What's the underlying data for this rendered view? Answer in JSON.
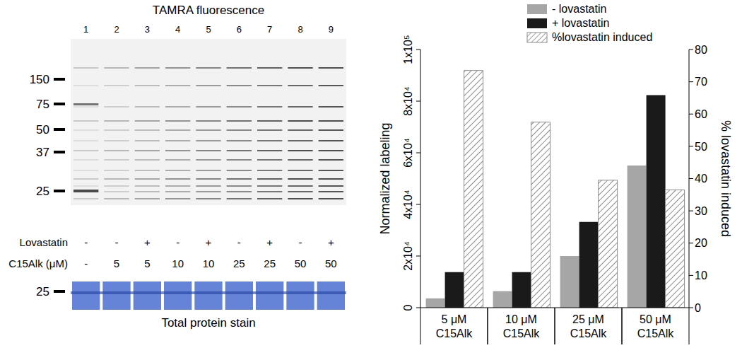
{
  "gel": {
    "title": "TAMRA fluorescence",
    "lanes": [
      "1",
      "2",
      "3",
      "4",
      "5",
      "6",
      "7",
      "8",
      "9"
    ],
    "markers": [
      150,
      75,
      50,
      37,
      25
    ],
    "rows": [
      {
        "label": "Lovastatin",
        "values": [
          "-",
          "-",
          "+",
          "-",
          "+",
          "-",
          "+",
          "-",
          "+"
        ]
      },
      {
        "label": "C15Alk (μM)",
        "values": [
          "-",
          "5",
          "5",
          "10",
          "10",
          "25",
          "25",
          "50",
          "50"
        ]
      }
    ],
    "stain": {
      "label": "Total protein stain",
      "markers": [
        25
      ]
    }
  },
  "chart_data": {
    "type": "bar",
    "categories": [
      "5 μM C15Alk",
      "10 μM C15Alk",
      "25 μM C15Alk",
      "50 μM C15Alk"
    ],
    "series": [
      {
        "name": "- lovastatin",
        "color": "#a6a6a6",
        "values": [
          3600,
          6400,
          20000,
          55100
        ]
      },
      {
        "name": "+ lovastatin",
        "color": "#1a1a1a",
        "values": [
          13800,
          13800,
          33200,
          82300
        ]
      },
      {
        "name": "%lovastatin induced",
        "color": "#8c8c8c",
        "values": [
          73.5,
          57.5,
          39.5,
          36.5
        ],
        "axis": "y2"
      }
    ],
    "y_label": "Normalized labeling",
    "y2_label": "% lovastatin induced",
    "ylim": [
      0,
      100000
    ],
    "yticks": [
      0,
      {
        "value": 20000,
        "label": "2x10⁴"
      },
      {
        "value": 40000,
        "label": "4x10⁴"
      },
      {
        "value": 60000,
        "label": "6x10⁴"
      },
      {
        "value": 80000,
        "label": "8x10⁴"
      },
      {
        "value": 100000,
        "label": "1x10⁵"
      }
    ],
    "y2lim": [
      0,
      80
    ],
    "y2ticks": [
      0,
      10,
      20,
      30,
      40,
      50,
      60,
      70,
      80
    ],
    "legend": "top"
  }
}
